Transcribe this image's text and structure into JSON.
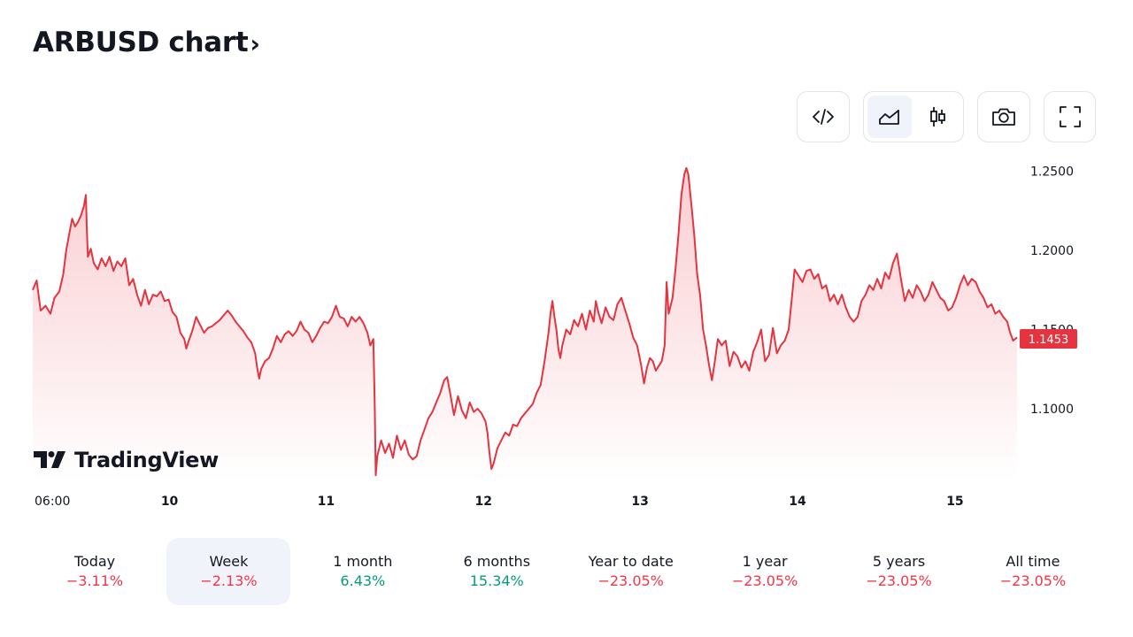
{
  "header": {
    "title": "ARBUSD chart",
    "title_chevron": "›"
  },
  "toolbar": {
    "embed_icon": "code-icon",
    "line_chart_icon": "area-chart-icon",
    "candle_chart_icon": "candlestick-icon",
    "snapshot_icon": "camera-icon",
    "fullscreen_icon": "fullscreen-icon",
    "active_chart_style": "line"
  },
  "brand": {
    "logo_text": "TradingView"
  },
  "colors": {
    "line": "#e5333f",
    "fill_top": "#f9c9cd",
    "price_badge": "#e5333f",
    "negative": "#f23645",
    "positive": "#089981",
    "active_period_bg": "#f0f3fa"
  },
  "chart_data": {
    "type": "area",
    "symbol": "ARBUSD",
    "y_ticks": [
      "1.2500",
      "1.2000",
      "1.1500",
      "1.1000"
    ],
    "ylim": [
      1.06,
      1.252
    ],
    "last_price": "1.1453",
    "x_ticks": [
      "06:00",
      "10",
      "11",
      "12",
      "13",
      "14",
      "15"
    ],
    "x_tick_pos": [
      0,
      0.139,
      0.298,
      0.458,
      0.617,
      0.777,
      0.937
    ],
    "grid": false,
    "series": [
      {
        "values": [
          [
            0.0,
            1.175
          ],
          [
            0.004,
            1.181
          ],
          [
            0.008,
            1.162
          ],
          [
            0.013,
            1.165
          ],
          [
            0.018,
            1.16
          ],
          [
            0.022,
            1.17
          ],
          [
            0.027,
            1.174
          ],
          [
            0.031,
            1.185
          ],
          [
            0.034,
            1.2
          ],
          [
            0.037,
            1.21
          ],
          [
            0.04,
            1.22
          ],
          [
            0.043,
            1.215
          ],
          [
            0.046,
            1.218
          ],
          [
            0.049,
            1.222
          ],
          [
            0.052,
            1.228
          ],
          [
            0.054,
            1.235
          ],
          [
            0.055,
            1.212
          ],
          [
            0.056,
            1.196
          ],
          [
            0.059,
            1.201
          ],
          [
            0.062,
            1.192
          ],
          [
            0.066,
            1.188
          ],
          [
            0.07,
            1.195
          ],
          [
            0.074,
            1.19
          ],
          [
            0.078,
            1.196
          ],
          [
            0.082,
            1.187
          ],
          [
            0.086,
            1.193
          ],
          [
            0.09,
            1.19
          ],
          [
            0.094,
            1.195
          ],
          [
            0.098,
            1.178
          ],
          [
            0.102,
            1.182
          ],
          [
            0.106,
            1.172
          ],
          [
            0.11,
            1.165
          ],
          [
            0.114,
            1.175
          ],
          [
            0.118,
            1.166
          ],
          [
            0.122,
            1.172
          ],
          [
            0.126,
            1.171
          ],
          [
            0.13,
            1.174
          ],
          [
            0.134,
            1.168
          ],
          [
            0.138,
            1.169
          ],
          [
            0.142,
            1.161
          ],
          [
            0.146,
            1.158
          ],
          [
            0.15,
            1.148
          ],
          [
            0.154,
            1.144
          ],
          [
            0.156,
            1.138
          ],
          [
            0.158,
            1.142
          ],
          [
            0.162,
            1.149
          ],
          [
            0.166,
            1.158
          ],
          [
            0.17,
            1.153
          ],
          [
            0.174,
            1.148
          ],
          [
            0.178,
            1.151
          ],
          [
            0.182,
            1.152
          ],
          [
            0.186,
            1.154
          ],
          [
            0.19,
            1.156
          ],
          [
            0.194,
            1.159
          ],
          [
            0.198,
            1.162
          ],
          [
            0.202,
            1.159
          ],
          [
            0.206,
            1.155
          ],
          [
            0.21,
            1.152
          ],
          [
            0.214,
            1.149
          ],
          [
            0.218,
            1.145
          ],
          [
            0.222,
            1.142
          ],
          [
            0.226,
            1.135
          ],
          [
            0.228,
            1.126
          ],
          [
            0.23,
            1.119
          ],
          [
            0.232,
            1.125
          ],
          [
            0.236,
            1.13
          ],
          [
            0.24,
            1.132
          ],
          [
            0.244,
            1.138
          ],
          [
            0.248,
            1.146
          ],
          [
            0.252,
            1.142
          ],
          [
            0.256,
            1.147
          ],
          [
            0.26,
            1.149
          ],
          [
            0.264,
            1.146
          ],
          [
            0.268,
            1.149
          ],
          [
            0.272,
            1.155
          ],
          [
            0.276,
            1.15
          ],
          [
            0.28,
            1.148
          ],
          [
            0.284,
            1.142
          ],
          [
            0.288,
            1.146
          ],
          [
            0.292,
            1.151
          ],
          [
            0.296,
            1.155
          ],
          [
            0.3,
            1.154
          ],
          [
            0.304,
            1.158
          ],
          [
            0.308,
            1.165
          ],
          [
            0.312,
            1.158
          ],
          [
            0.316,
            1.157
          ],
          [
            0.32,
            1.152
          ],
          [
            0.324,
            1.158
          ],
          [
            0.328,
            1.155
          ],
          [
            0.332,
            1.158
          ],
          [
            0.336,
            1.154
          ],
          [
            0.34,
            1.148
          ],
          [
            0.343,
            1.14
          ],
          [
            0.346,
            1.144
          ],
          [
            0.3475,
            1.101
          ],
          [
            0.3485,
            1.058
          ],
          [
            0.35,
            1.07
          ],
          [
            0.354,
            1.08
          ],
          [
            0.358,
            1.072
          ],
          [
            0.362,
            1.078
          ],
          [
            0.366,
            1.069
          ],
          [
            0.37,
            1.083
          ],
          [
            0.374,
            1.074
          ],
          [
            0.378,
            1.08
          ],
          [
            0.382,
            1.071
          ],
          [
            0.386,
            1.068
          ],
          [
            0.39,
            1.07
          ],
          [
            0.394,
            1.08
          ],
          [
            0.398,
            1.087
          ],
          [
            0.402,
            1.094
          ],
          [
            0.406,
            1.098
          ],
          [
            0.41,
            1.104
          ],
          [
            0.414,
            1.11
          ],
          [
            0.418,
            1.118
          ],
          [
            0.421,
            1.12
          ],
          [
            0.424,
            1.11
          ],
          [
            0.428,
            1.096
          ],
          [
            0.432,
            1.108
          ],
          [
            0.436,
            1.099
          ],
          [
            0.44,
            1.094
          ],
          [
            0.444,
            1.104
          ],
          [
            0.448,
            1.098
          ],
          [
            0.452,
            1.1
          ],
          [
            0.456,
            1.097
          ],
          [
            0.46,
            1.092
          ],
          [
            0.462,
            1.085
          ],
          [
            0.464,
            1.072
          ],
          [
            0.466,
            1.062
          ],
          [
            0.468,
            1.065
          ],
          [
            0.472,
            1.075
          ],
          [
            0.476,
            1.08
          ],
          [
            0.48,
            1.085
          ],
          [
            0.484,
            1.083
          ],
          [
            0.488,
            1.09
          ],
          [
            0.492,
            1.089
          ],
          [
            0.496,
            1.094
          ],
          [
            0.5,
            1.097
          ],
          [
            0.504,
            1.1
          ],
          [
            0.508,
            1.103
          ],
          [
            0.512,
            1.11
          ],
          [
            0.516,
            1.115
          ],
          [
            0.52,
            1.13
          ],
          [
            0.524,
            1.148
          ],
          [
            0.526,
            1.16
          ],
          [
            0.528,
            1.168
          ],
          [
            0.53,
            1.158
          ],
          [
            0.532,
            1.15
          ],
          [
            0.534,
            1.138
          ],
          [
            0.536,
            1.132
          ],
          [
            0.538,
            1.14
          ],
          [
            0.542,
            1.15
          ],
          [
            0.546,
            1.147
          ],
          [
            0.55,
            1.156
          ],
          [
            0.554,
            1.152
          ],
          [
            0.558,
            1.16
          ],
          [
            0.562,
            1.15
          ],
          [
            0.566,
            1.162
          ],
          [
            0.57,
            1.155
          ],
          [
            0.572,
            1.168
          ],
          [
            0.575,
            1.16
          ],
          [
            0.578,
            1.154
          ],
          [
            0.582,
            1.164
          ],
          [
            0.586,
            1.158
          ],
          [
            0.59,
            1.156
          ],
          [
            0.594,
            1.166
          ],
          [
            0.598,
            1.17
          ],
          [
            0.602,
            1.162
          ],
          [
            0.606,
            1.154
          ],
          [
            0.61,
            1.145
          ],
          [
            0.614,
            1.14
          ],
          [
            0.618,
            1.128
          ],
          [
            0.621,
            1.116
          ],
          [
            0.624,
            1.126
          ],
          [
            0.627,
            1.132
          ],
          [
            0.63,
            1.13
          ],
          [
            0.633,
            1.124
          ],
          [
            0.636,
            1.127
          ],
          [
            0.639,
            1.13
          ],
          [
            0.642,
            1.14
          ],
          [
            0.644,
            1.18
          ],
          [
            0.646,
            1.16
          ],
          [
            0.65,
            1.17
          ],
          [
            0.653,
            1.188
          ],
          [
            0.656,
            1.21
          ],
          [
            0.659,
            1.235
          ],
          [
            0.662,
            1.248
          ],
          [
            0.664,
            1.252
          ],
          [
            0.666,
            1.248
          ],
          [
            0.669,
            1.23
          ],
          [
            0.672,
            1.21
          ],
          [
            0.675,
            1.185
          ],
          [
            0.678,
            1.172
          ],
          [
            0.681,
            1.15
          ],
          [
            0.684,
            1.14
          ],
          [
            0.687,
            1.128
          ],
          [
            0.69,
            1.118
          ],
          [
            0.693,
            1.13
          ],
          [
            0.696,
            1.144
          ],
          [
            0.7,
            1.14
          ],
          [
            0.704,
            1.143
          ],
          [
            0.708,
            1.127
          ],
          [
            0.712,
            1.136
          ],
          [
            0.716,
            1.133
          ],
          [
            0.72,
            1.126
          ],
          [
            0.724,
            1.13
          ],
          [
            0.728,
            1.124
          ],
          [
            0.732,
            1.136
          ],
          [
            0.736,
            1.142
          ],
          [
            0.74,
            1.15
          ],
          [
            0.744,
            1.13
          ],
          [
            0.748,
            1.134
          ],
          [
            0.752,
            1.151
          ],
          [
            0.756,
            1.135
          ],
          [
            0.76,
            1.14
          ],
          [
            0.764,
            1.143
          ],
          [
            0.768,
            1.15
          ],
          [
            0.77,
            1.162
          ],
          [
            0.772,
            1.175
          ],
          [
            0.774,
            1.188
          ],
          [
            0.778,
            1.184
          ],
          [
            0.782,
            1.18
          ],
          [
            0.786,
            1.187
          ],
          [
            0.79,
            1.188
          ],
          [
            0.794,
            1.182
          ],
          [
            0.798,
            1.185
          ],
          [
            0.802,
            1.176
          ],
          [
            0.806,
            1.178
          ],
          [
            0.81,
            1.168
          ],
          [
            0.814,
            1.172
          ],
          [
            0.818,
            1.166
          ],
          [
            0.822,
            1.172
          ],
          [
            0.826,
            1.164
          ],
          [
            0.83,
            1.158
          ],
          [
            0.834,
            1.155
          ],
          [
            0.838,
            1.158
          ],
          [
            0.842,
            1.168
          ],
          [
            0.846,
            1.172
          ],
          [
            0.85,
            1.178
          ],
          [
            0.854,
            1.175
          ],
          [
            0.858,
            1.182
          ],
          [
            0.862,
            1.176
          ],
          [
            0.866,
            1.186
          ],
          [
            0.87,
            1.182
          ],
          [
            0.874,
            1.192
          ],
          [
            0.878,
            1.198
          ],
          [
            0.88,
            1.19
          ],
          [
            0.882,
            1.182
          ],
          [
            0.886,
            1.168
          ],
          [
            0.89,
            1.175
          ],
          [
            0.894,
            1.17
          ],
          [
            0.898,
            1.178
          ],
          [
            0.902,
            1.174
          ],
          [
            0.906,
            1.168
          ],
          [
            0.91,
            1.172
          ],
          [
            0.914,
            1.18
          ],
          [
            0.918,
            1.175
          ],
          [
            0.922,
            1.17
          ],
          [
            0.926,
            1.168
          ],
          [
            0.93,
            1.162
          ],
          [
            0.934,
            1.164
          ],
          [
            0.938,
            1.17
          ],
          [
            0.942,
            1.178
          ],
          [
            0.946,
            1.184
          ],
          [
            0.95,
            1.178
          ],
          [
            0.954,
            1.182
          ],
          [
            0.958,
            1.18
          ],
          [
            0.962,
            1.174
          ],
          [
            0.966,
            1.17
          ],
          [
            0.97,
            1.164
          ],
          [
            0.974,
            1.166
          ],
          [
            0.978,
            1.16
          ],
          [
            0.982,
            1.162
          ],
          [
            0.986,
            1.158
          ],
          [
            0.99,
            1.155
          ],
          [
            0.993,
            1.148
          ],
          [
            0.996,
            1.143
          ],
          [
            1.0,
            1.145
          ]
        ]
      }
    ]
  },
  "periods": [
    {
      "label": "Today",
      "change": "−3.11%",
      "sign": "neg",
      "active": false
    },
    {
      "label": "Week",
      "change": "−2.13%",
      "sign": "neg",
      "active": true
    },
    {
      "label": "1 month",
      "change": "6.43%",
      "sign": "pos",
      "active": false
    },
    {
      "label": "6 months",
      "change": "15.34%",
      "sign": "pos",
      "active": false
    },
    {
      "label": "Year to date",
      "change": "−23.05%",
      "sign": "neg",
      "active": false
    },
    {
      "label": "1 year",
      "change": "−23.05%",
      "sign": "neg",
      "active": false
    },
    {
      "label": "5 years",
      "change": "−23.05%",
      "sign": "neg",
      "active": false
    },
    {
      "label": "All time",
      "change": "−23.05%",
      "sign": "neg",
      "active": false
    }
  ]
}
